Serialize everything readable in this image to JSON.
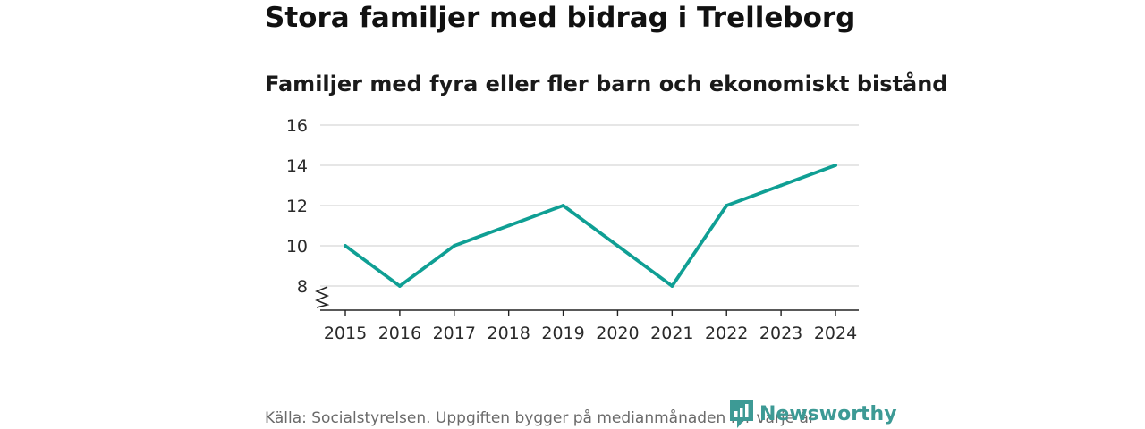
{
  "colors": {
    "line": "#0f9f94",
    "grid": "#d6d6d6",
    "axis": "#222222",
    "brand": "#3d9a95"
  },
  "source_text": "Källa: Socialstyrelsen. Uppgiften bygger på medianmånaden för varje år",
  "brand": {
    "name": "Newsworthy",
    "icon": "bar-chart-badge-icon"
  },
  "chart_data": {
    "type": "line",
    "title": "Stora familjer med bidrag i Trelleborg",
    "subtitle": "Familjer med fyra eller fler barn och ekonomiskt bistånd",
    "xlabel": "",
    "ylabel": "",
    "x": [
      "2015",
      "2016",
      "2017",
      "2018",
      "2019",
      "2020",
      "2021",
      "2022",
      "2023",
      "2024"
    ],
    "series": [
      {
        "name": "Familjer med fyra eller fler barn och ekonomiskt bistånd",
        "values": [
          10,
          8,
          10,
          11,
          12,
          10,
          8,
          12,
          13,
          14
        ]
      }
    ],
    "yticks": [
      8,
      10,
      12,
      14,
      16
    ],
    "ylim": [
      6.8,
      16
    ],
    "grid": true,
    "axis_break": true,
    "legend": "none"
  }
}
